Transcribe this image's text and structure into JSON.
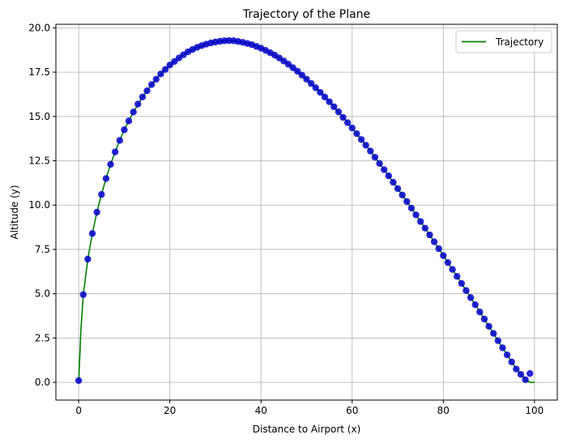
{
  "chart_data": {
    "type": "line",
    "title": "Trajectory of the Plane",
    "xlabel": "Distance to Airport (x)",
    "ylabel": "Altitude (y)",
    "xlim": [
      -5,
      105
    ],
    "ylim": [
      -1,
      20.2
    ],
    "xticks": [
      0,
      20,
      40,
      60,
      80,
      100
    ],
    "yticks": [
      0.0,
      2.5,
      5.0,
      7.5,
      10.0,
      12.5,
      15.0,
      17.5,
      20.0
    ],
    "xtick_labels": [
      "0",
      "20",
      "40",
      "60",
      "80",
      "100"
    ],
    "ytick_labels": [
      "0.0",
      "2.5",
      "5.0",
      "7.5",
      "10.0",
      "12.5",
      "15.0",
      "17.5",
      "20.0"
    ],
    "grid": true,
    "legend": {
      "position": "top-right",
      "entries": [
        "Trajectory"
      ]
    },
    "colors": {
      "line": "#008000",
      "points": "#0000cc",
      "grid": "#b0b0b0"
    },
    "series": [
      {
        "name": "Trajectory",
        "kind": "line",
        "x": [
          0,
          0.5,
          1,
          2,
          3,
          4,
          5,
          6,
          7,
          8,
          9,
          10,
          12,
          14,
          16,
          18,
          20,
          22,
          24,
          26,
          28,
          30,
          32,
          33,
          34,
          36,
          38,
          40,
          42,
          44,
          46,
          48,
          50,
          52,
          54,
          56,
          58,
          60,
          62,
          64,
          66,
          68,
          70,
          72,
          74,
          76,
          78,
          80,
          82,
          84,
          86,
          88,
          90,
          92,
          94,
          96,
          98,
          99,
          100
        ],
        "y": [
          0.0,
          3.0,
          4.9,
          6.95,
          8.4,
          9.6,
          10.6,
          11.5,
          12.3,
          13.0,
          13.65,
          14.25,
          15.25,
          16.1,
          16.8,
          17.4,
          17.9,
          18.3,
          18.65,
          18.9,
          19.08,
          19.2,
          19.27,
          19.28,
          19.27,
          19.18,
          19.05,
          18.85,
          18.6,
          18.3,
          17.95,
          17.55,
          17.1,
          16.62,
          16.1,
          15.55,
          14.95,
          14.35,
          13.7,
          13.05,
          12.35,
          11.65,
          10.93,
          10.2,
          9.45,
          8.7,
          7.93,
          7.15,
          6.37,
          5.58,
          4.78,
          3.97,
          3.16,
          2.35,
          1.55,
          0.75,
          0.15,
          0.0,
          0.0
        ]
      },
      {
        "name": "",
        "kind": "scatter",
        "x": [
          0,
          1,
          2,
          3,
          4,
          5,
          6,
          7,
          8,
          9,
          10,
          11,
          12,
          13,
          14,
          15,
          16,
          17,
          18,
          19,
          20,
          21,
          22,
          23,
          24,
          25,
          26,
          27,
          28,
          29,
          30,
          31,
          32,
          33,
          34,
          35,
          36,
          37,
          38,
          39,
          40,
          41,
          42,
          43,
          44,
          45,
          46,
          47,
          48,
          49,
          50,
          51,
          52,
          53,
          54,
          55,
          56,
          57,
          58,
          59,
          60,
          61,
          62,
          63,
          64,
          65,
          66,
          67,
          68,
          69,
          70,
          71,
          72,
          73,
          74,
          75,
          76,
          77,
          78,
          79,
          80,
          81,
          82,
          83,
          84,
          85,
          86,
          87,
          88,
          89,
          90,
          91,
          92,
          93,
          94,
          95,
          96,
          97,
          98,
          99
        ],
        "y": [
          0.1,
          4.95,
          6.95,
          8.4,
          9.6,
          10.6,
          11.5,
          12.3,
          13.0,
          13.65,
          14.25,
          14.75,
          15.25,
          15.7,
          16.1,
          16.45,
          16.8,
          17.1,
          17.4,
          17.65,
          17.9,
          18.1,
          18.3,
          18.48,
          18.65,
          18.78,
          18.9,
          19.0,
          19.08,
          19.15,
          19.2,
          19.24,
          19.27,
          19.28,
          19.27,
          19.23,
          19.18,
          19.12,
          19.05,
          18.95,
          18.85,
          18.73,
          18.6,
          18.46,
          18.3,
          18.13,
          17.95,
          17.75,
          17.55,
          17.33,
          17.1,
          16.86,
          16.62,
          16.36,
          16.1,
          15.83,
          15.55,
          15.26,
          14.95,
          14.65,
          14.35,
          14.03,
          13.7,
          13.38,
          13.05,
          12.7,
          12.35,
          12.0,
          11.65,
          11.29,
          10.93,
          10.57,
          10.2,
          9.83,
          9.45,
          9.07,
          8.7,
          8.32,
          7.93,
          7.54,
          7.15,
          6.76,
          6.37,
          5.98,
          5.58,
          5.18,
          4.78,
          4.38,
          3.97,
          3.57,
          3.16,
          2.76,
          2.35,
          1.95,
          1.55,
          1.15,
          0.75,
          0.45,
          0.15,
          0.5
        ]
      }
    ]
  }
}
